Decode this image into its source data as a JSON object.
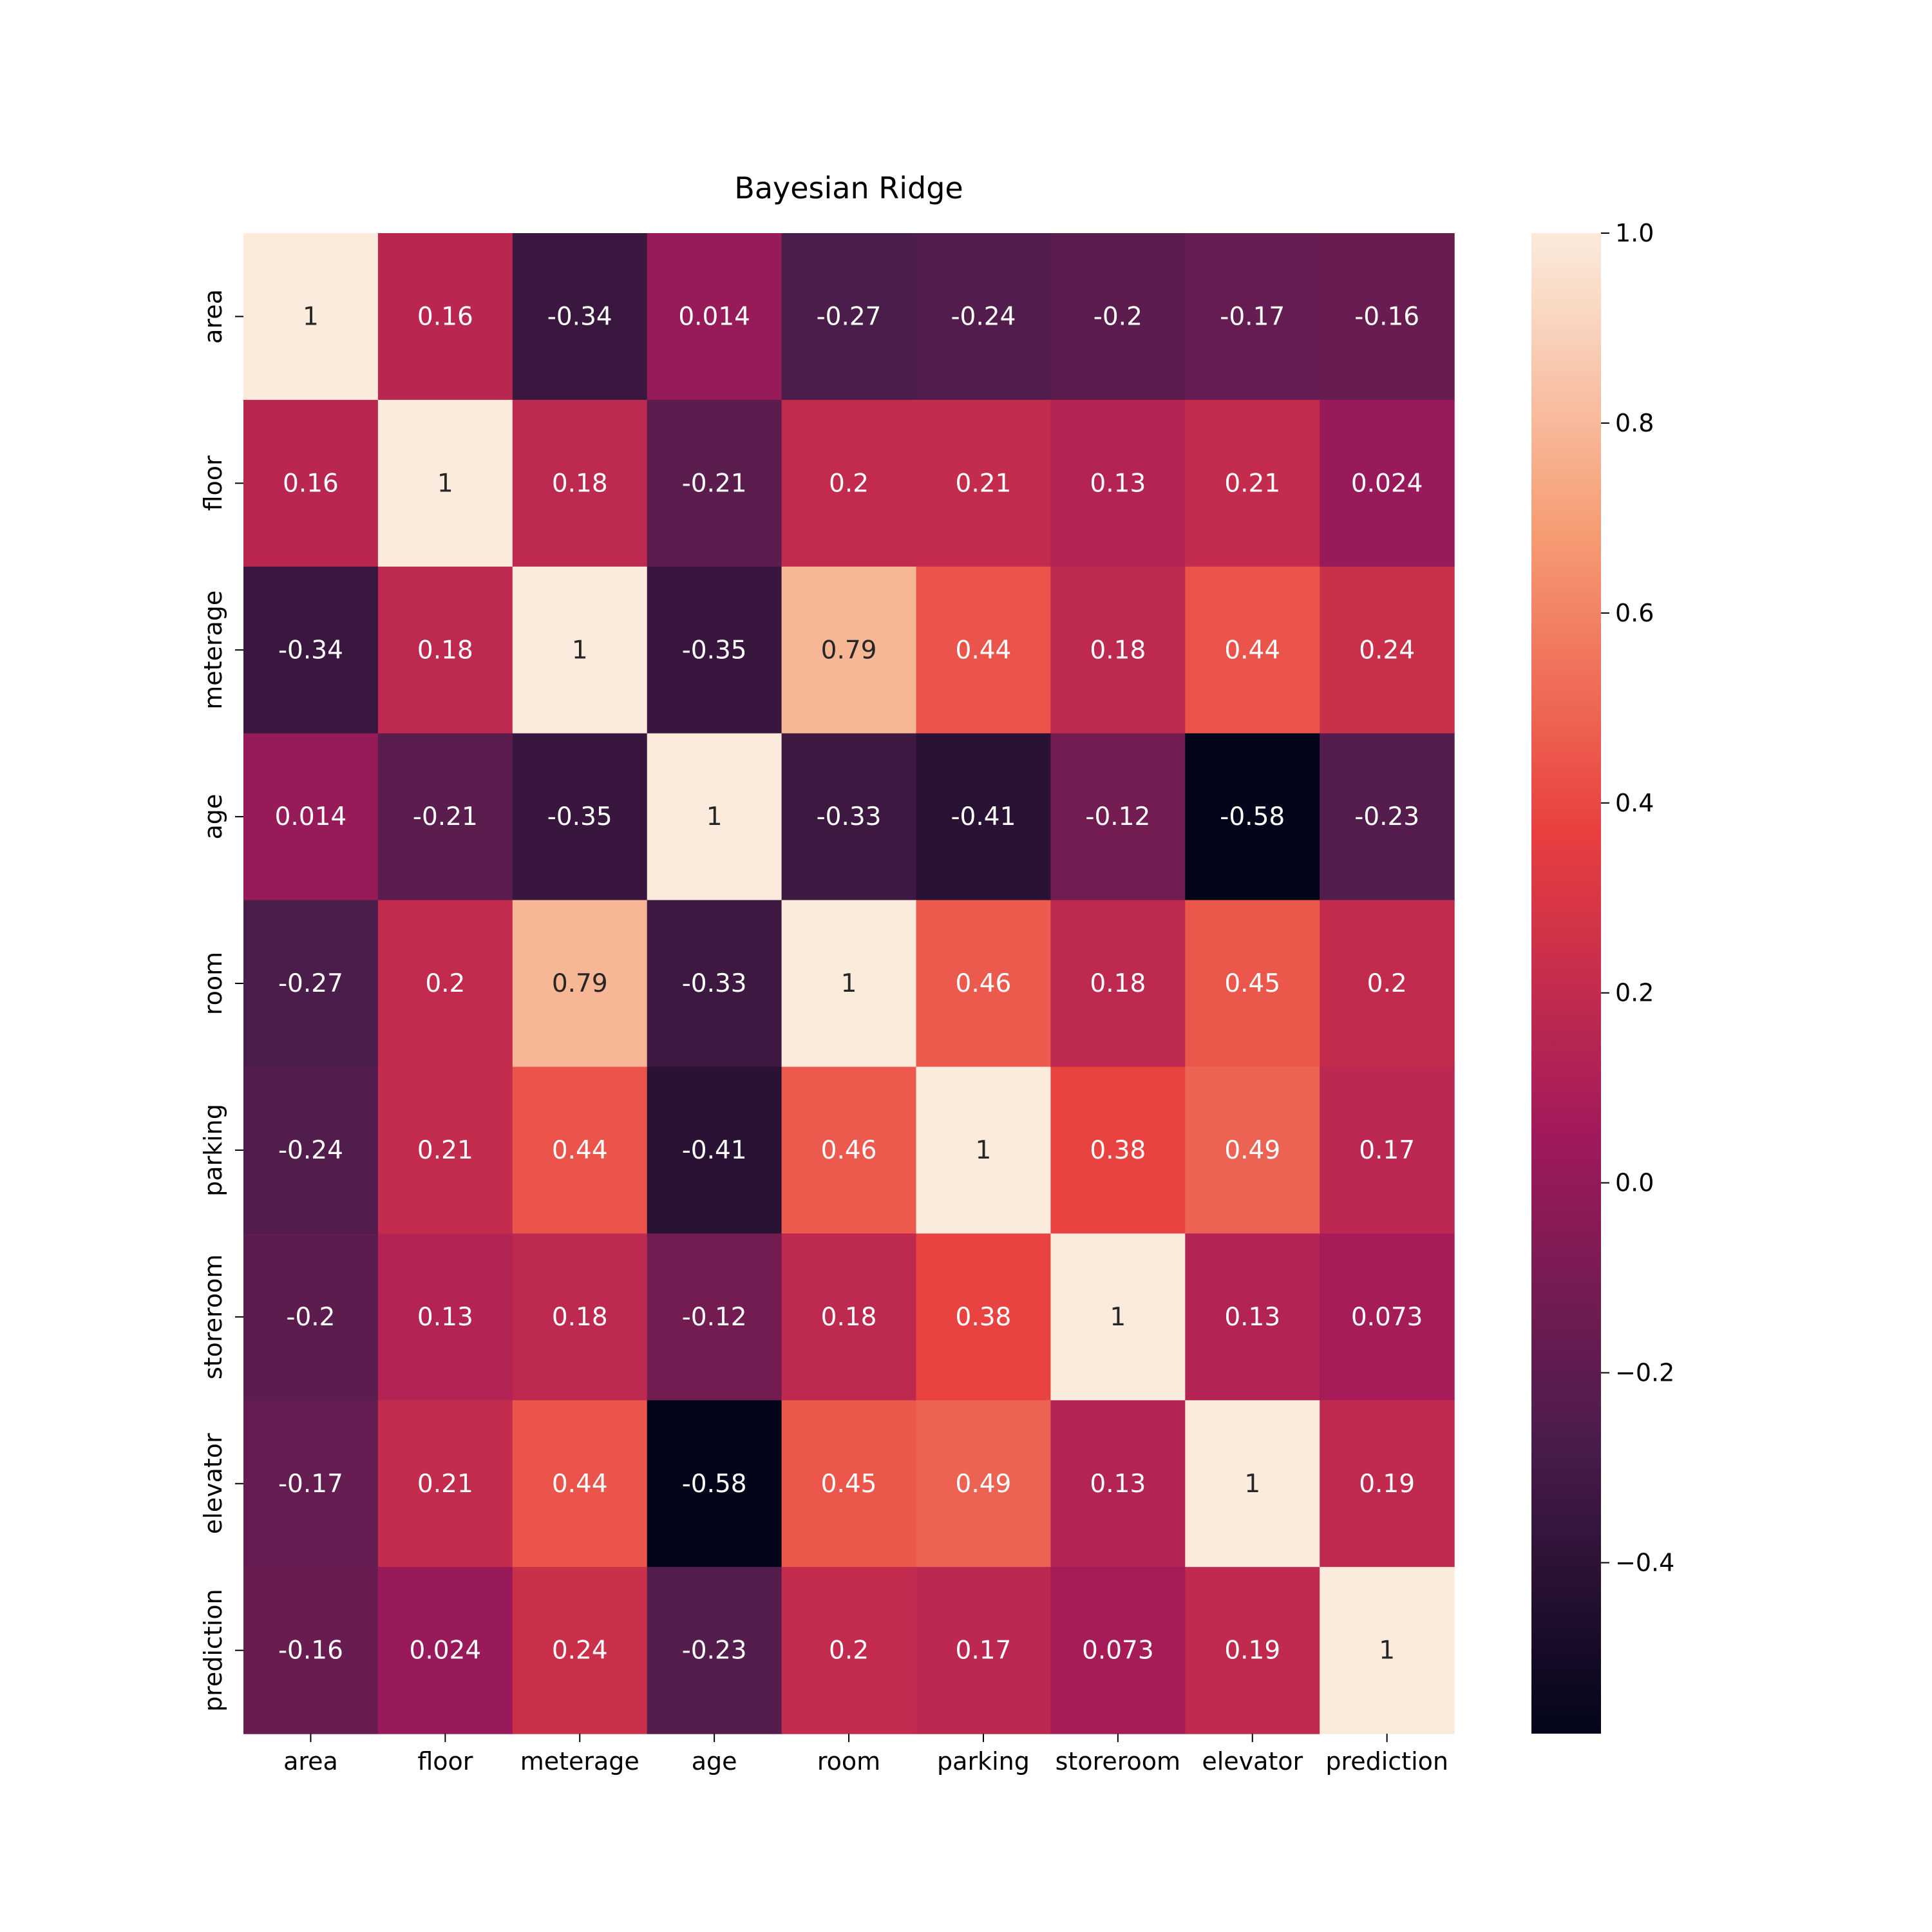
{
  "chart_data": {
    "type": "heatmap",
    "title": "Bayesian Ridge",
    "row_labels": [
      "area",
      "floor",
      "meterage",
      "age",
      "room",
      "parking",
      "storeroom",
      "elevator",
      "prediction"
    ],
    "col_labels": [
      "area",
      "floor",
      "meterage",
      "age",
      "room",
      "parking",
      "storeroom",
      "elevator",
      "prediction"
    ],
    "values": [
      [
        1,
        0.16,
        -0.34,
        0.014,
        -0.27,
        -0.24,
        -0.2,
        -0.17,
        -0.16
      ],
      [
        0.16,
        1,
        0.18,
        -0.21,
        0.2,
        0.21,
        0.13,
        0.21,
        0.024
      ],
      [
        -0.34,
        0.18,
        1,
        -0.35,
        0.79,
        0.44,
        0.18,
        0.44,
        0.24
      ],
      [
        0.014,
        -0.21,
        -0.35,
        1,
        -0.33,
        -0.41,
        -0.12,
        -0.58,
        -0.23
      ],
      [
        -0.27,
        0.2,
        0.79,
        -0.33,
        1,
        0.46,
        0.18,
        0.45,
        0.2
      ],
      [
        -0.24,
        0.21,
        0.44,
        -0.41,
        0.46,
        1,
        0.38,
        0.49,
        0.17
      ],
      [
        -0.2,
        0.13,
        0.18,
        -0.12,
        0.18,
        0.38,
        1,
        0.13,
        0.073
      ],
      [
        -0.17,
        0.21,
        0.44,
        -0.58,
        0.45,
        0.49,
        0.13,
        1,
        0.19
      ],
      [
        -0.16,
        0.024,
        0.24,
        -0.23,
        0.2,
        0.17,
        0.073,
        0.19,
        1
      ]
    ],
    "value_labels": [
      [
        "1",
        "0.16",
        "-0.34",
        "0.014",
        "-0.27",
        "-0.24",
        "-0.2",
        "-0.17",
        "-0.16"
      ],
      [
        "0.16",
        "1",
        "0.18",
        "-0.21",
        "0.2",
        "0.21",
        "0.13",
        "0.21",
        "0.024"
      ],
      [
        "-0.34",
        "0.18",
        "1",
        "-0.35",
        "0.79",
        "0.44",
        "0.18",
        "0.44",
        "0.24"
      ],
      [
        "0.014",
        "-0.21",
        "-0.35",
        "1",
        "-0.33",
        "-0.41",
        "-0.12",
        "-0.58",
        "-0.23"
      ],
      [
        "-0.27",
        "0.2",
        "0.79",
        "-0.33",
        "1",
        "0.46",
        "0.18",
        "0.45",
        "0.2"
      ],
      [
        "-0.24",
        "0.21",
        "0.44",
        "-0.41",
        "0.46",
        "1",
        "0.38",
        "0.49",
        "0.17"
      ],
      [
        "-0.2",
        "0.13",
        "0.18",
        "-0.12",
        "0.18",
        "0.38",
        "1",
        "0.13",
        "0.073"
      ],
      [
        "-0.17",
        "0.21",
        "0.44",
        "-0.58",
        "0.45",
        "0.49",
        "0.13",
        "1",
        "0.19"
      ],
      [
        "-0.16",
        "0.024",
        "0.24",
        "-0.23",
        "0.2",
        "0.17",
        "0.073",
        "0.19",
        "1"
      ]
    ],
    "colorbar": {
      "min": -0.58,
      "max": 1.0,
      "ticks": [
        1.0,
        0.8,
        0.6,
        0.4,
        0.2,
        0.0,
        -0.2,
        -0.4
      ],
      "tick_labels": [
        "1.0",
        "0.8",
        "0.6",
        "0.4",
        "0.2",
        "0.0",
        "−0.2",
        "−0.4"
      ],
      "colormap": "rocket",
      "stops": [
        "#03051a",
        "#4c1d4b",
        "#a11a5b",
        "#e83f3f",
        "#f69c73",
        "#faebdd"
      ]
    },
    "grid": false,
    "legend": "colorbar-right"
  }
}
